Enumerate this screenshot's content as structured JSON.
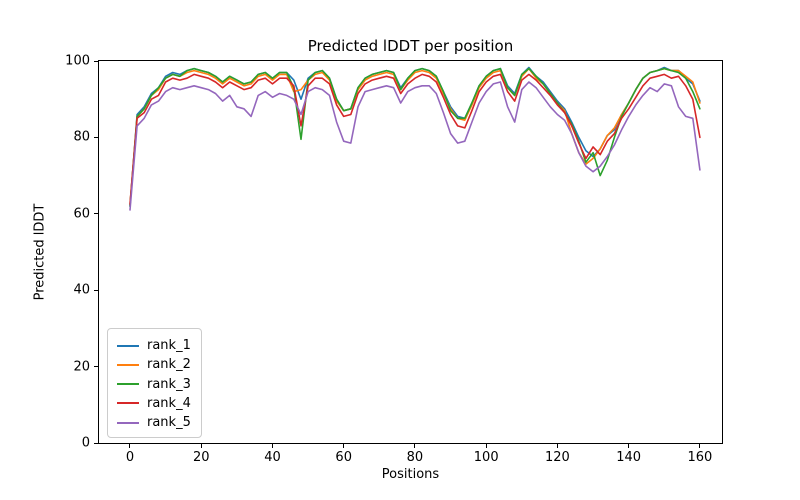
{
  "chart_data": {
    "type": "line",
    "title": "Predicted lDDT per position",
    "xlabel": "Positions",
    "ylabel": "Predicted lDDT",
    "xlim": [
      -8.7,
      166.2
    ],
    "ylim": [
      0,
      100
    ],
    "xticks": [
      0,
      20,
      40,
      60,
      80,
      100,
      120,
      140,
      160
    ],
    "yticks": [
      0,
      20,
      40,
      60,
      80,
      100
    ],
    "grid": false,
    "legend_loc": "lower left",
    "line_width": 1.6,
    "x": [
      0,
      2,
      4,
      6,
      8,
      10,
      12,
      14,
      16,
      18,
      20,
      22,
      24,
      26,
      28,
      30,
      32,
      34,
      36,
      38,
      40,
      42,
      44,
      46,
      48,
      50,
      52,
      54,
      56,
      58,
      60,
      62,
      64,
      66,
      68,
      70,
      72,
      74,
      76,
      78,
      80,
      82,
      84,
      86,
      88,
      90,
      92,
      94,
      96,
      98,
      100,
      102,
      104,
      106,
      108,
      110,
      112,
      114,
      116,
      118,
      120,
      122,
      124,
      126,
      128,
      130,
      132,
      134,
      136,
      138,
      140,
      142,
      144,
      146,
      148,
      150,
      152,
      154,
      156,
      158,
      160
    ],
    "series": [
      {
        "name": "rank_1",
        "color": "#1f77b4",
        "values": [
          62,
          86,
          88,
          91.5,
          93,
          96,
          97,
          96.5,
          97.5,
          98,
          97.5,
          97,
          96,
          94.5,
          96,
          95,
          94,
          94.5,
          96.5,
          97,
          95.5,
          97,
          97,
          95,
          90,
          95.5,
          97,
          97.5,
          95.5,
          90,
          87,
          87.5,
          93,
          95.5,
          96.5,
          97,
          97.5,
          97,
          93,
          95.5,
          97.5,
          98,
          97.5,
          96,
          92,
          88,
          85.5,
          85,
          89,
          93.5,
          96,
          97.5,
          98,
          93.5,
          91.5,
          96.5,
          98.3,
          96,
          94.5,
          92,
          89.5,
          87.5,
          84,
          80,
          76.5,
          75,
          77,
          80.5,
          82,
          86,
          89,
          92.5,
          95.5,
          97,
          97.5,
          98.3,
          97.5,
          97.5,
          95.5,
          94,
          89.5
        ]
      },
      {
        "name": "rank_2",
        "color": "#ff7f0e",
        "values": [
          62.5,
          85.5,
          87.5,
          91,
          92.5,
          95.5,
          96.5,
          96,
          97,
          97.5,
          97,
          96.5,
          95.5,
          94,
          95.5,
          94.5,
          93.5,
          94,
          96,
          96.5,
          95,
          96.5,
          96.5,
          92,
          92.5,
          95,
          96.5,
          97,
          95,
          89.5,
          87,
          87.5,
          92.5,
          95,
          96,
          96.5,
          97,
          96.5,
          92.5,
          95,
          97,
          97.5,
          97,
          95.5,
          91.5,
          87.5,
          85,
          84.5,
          88.5,
          93,
          95.5,
          97,
          97.5,
          93,
          91,
          96,
          98,
          95.5,
          94,
          91.5,
          89,
          87,
          81,
          76,
          73,
          74.5,
          77,
          80.5,
          82.5,
          86,
          89,
          92.5,
          95.5,
          97,
          97.5,
          98,
          97.5,
          97.5,
          96,
          94.5,
          89
        ]
      },
      {
        "name": "rank_3",
        "color": "#2ca02c",
        "values": [
          62,
          85.5,
          87.5,
          91,
          93,
          95.5,
          96.5,
          96,
          97.5,
          98,
          97.5,
          97,
          96,
          94.5,
          96,
          95,
          94,
          94.5,
          96.5,
          97,
          95.5,
          97,
          97,
          93,
          79.5,
          95,
          97,
          97.5,
          95.5,
          90,
          87,
          87.5,
          93,
          95.5,
          96.5,
          97,
          97.5,
          97,
          92.5,
          95.5,
          97.5,
          98,
          97.5,
          96,
          92,
          87,
          85,
          85,
          89,
          93.5,
          96,
          97.5,
          98,
          93,
          91,
          96.5,
          98,
          96,
          94,
          91.5,
          89,
          86.5,
          83.5,
          79,
          73.5,
          76,
          70,
          74,
          80,
          85.5,
          89,
          92.5,
          95.5,
          97,
          97.5,
          98,
          97.5,
          97,
          95.5,
          92,
          87.5
        ]
      },
      {
        "name": "rank_4",
        "color": "#d62728",
        "values": [
          62.5,
          85,
          86.5,
          90,
          91,
          94.5,
          95.5,
          95,
          95.5,
          96.5,
          96,
          95.5,
          94.5,
          93,
          94.5,
          93.5,
          92.5,
          93,
          95,
          95.5,
          94,
          95.5,
          95.5,
          93.5,
          83,
          93.5,
          95.5,
          95.5,
          94,
          88.5,
          85.5,
          86,
          91.5,
          94,
          95,
          95.5,
          96,
          95.5,
          91.5,
          94,
          95.5,
          96.5,
          96,
          94.5,
          90.5,
          86,
          83,
          82.5,
          87,
          92,
          94.5,
          96,
          96.5,
          92,
          89.5,
          95,
          96.5,
          95,
          93,
          91,
          88.5,
          86.5,
          83,
          78.5,
          74.5,
          77.5,
          75.5,
          79,
          81,
          85,
          87.5,
          90.5,
          93.5,
          95.5,
          96,
          96.5,
          95.5,
          96,
          93.5,
          90,
          80
        ]
      },
      {
        "name": "rank_5",
        "color": "#9467bd",
        "values": [
          61,
          83,
          85,
          88.5,
          89.5,
          92,
          93,
          92.5,
          93,
          93.5,
          93,
          92.5,
          91.5,
          89.5,
          91,
          88,
          87.5,
          85.5,
          91,
          92,
          90.5,
          91.5,
          91,
          90,
          86,
          92,
          93,
          92.5,
          91,
          84,
          79,
          78.5,
          88,
          92,
          92.5,
          93,
          93.5,
          93,
          89,
          92,
          93,
          93.5,
          93.5,
          91.5,
          86.5,
          81,
          78.5,
          79,
          84,
          89,
          92,
          94,
          94.5,
          88,
          84,
          92.5,
          94.5,
          93,
          90.5,
          88,
          86,
          84.5,
          81,
          76,
          72.5,
          71,
          72.5,
          75,
          78,
          82,
          85.5,
          88.5,
          91,
          93,
          92,
          94,
          93.5,
          88,
          85.5,
          85,
          71.5
        ]
      }
    ]
  }
}
